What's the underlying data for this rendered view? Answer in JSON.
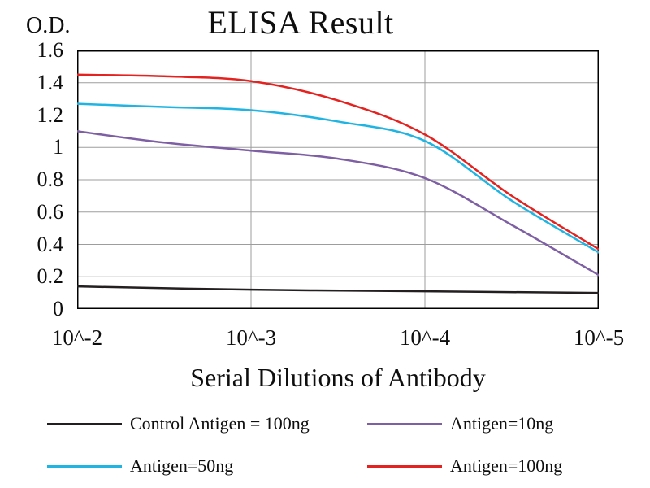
{
  "chart_data": {
    "type": "line",
    "title": "ELISA Result",
    "ylabel": "O.D.",
    "xlabel": "Serial Dilutions of Antibody",
    "x_axis_note": "x values are -log10 of dilution (10^-x)",
    "xlim": [
      2,
      5
    ],
    "ylim": [
      0,
      1.6
    ],
    "x_ticks": [
      2,
      3,
      4,
      5
    ],
    "x_ticklabels": [
      "10^-2",
      "10^-3",
      "10^-4",
      "10^-5"
    ],
    "y_ticks": [
      0,
      0.2,
      0.4,
      0.6,
      0.8,
      1,
      1.2,
      1.4,
      1.6
    ],
    "y_ticklabels": [
      "0",
      "0.2",
      "0.4",
      "0.6",
      "0.8",
      "1",
      "1.2",
      "1.4",
      "1.6"
    ],
    "x_gridlines": [
      3,
      4
    ],
    "grid": true,
    "legend_position": "bottom",
    "frame_color": "#000000",
    "grid_color": "#9d9d9d",
    "series": [
      {
        "name": "Control Antigen = 100ng",
        "color": "#231f20",
        "x": [
          2,
          3,
          4,
          5
        ],
        "values": [
          0.14,
          0.12,
          0.11,
          0.1
        ]
      },
      {
        "name": "Antigen=10ng",
        "color": "#7e5fa4",
        "x": [
          2,
          2.5,
          3,
          3.5,
          4,
          4.5,
          5
        ],
        "values": [
          1.1,
          1.03,
          0.98,
          0.93,
          0.81,
          0.52,
          0.21
        ]
      },
      {
        "name": "Antigen=50ng",
        "color": "#1fb4e2",
        "x": [
          2,
          2.5,
          3,
          3.5,
          4,
          4.5,
          5
        ],
        "values": [
          1.27,
          1.25,
          1.23,
          1.16,
          1.04,
          0.67,
          0.35
        ]
      },
      {
        "name": "Antigen=100ng",
        "color": "#e42320",
        "x": [
          2,
          2.5,
          3,
          3.5,
          4,
          4.5,
          5
        ],
        "values": [
          1.45,
          1.44,
          1.41,
          1.29,
          1.08,
          0.7,
          0.37
        ]
      }
    ]
  }
}
